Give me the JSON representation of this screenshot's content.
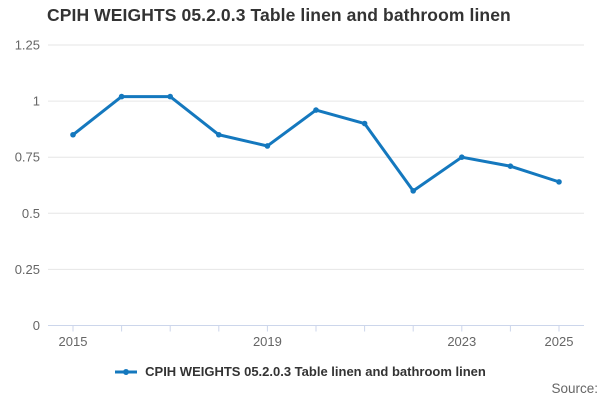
{
  "title": "CPIH WEIGHTS 05.2.0.3 Table linen and bathroom linen",
  "legend": {
    "label": "CPIH WEIGHTS 05.2.0.3 Table linen and bathroom linen"
  },
  "source_label": "Source:",
  "colors": {
    "line": "#1478be",
    "grid": "#e6e6e6",
    "axis": "#ccd6eb",
    "tick": "#ccd6eb",
    "axis_text": "#666666",
    "title_text": "#333333"
  },
  "chart_data": {
    "type": "line",
    "title": "CPIH WEIGHTS 05.2.0.3 Table linen and bathroom linen",
    "x": [
      2015,
      2016,
      2017,
      2018,
      2019,
      2020,
      2021,
      2022,
      2023,
      2024,
      2025
    ],
    "series": [
      {
        "name": "CPIH WEIGHTS 05.2.0.3 Table linen and bathroom linen",
        "values": [
          0.85,
          1.02,
          1.02,
          0.85,
          0.8,
          0.96,
          0.9,
          0.6,
          0.75,
          0.71,
          0.64
        ]
      }
    ],
    "xlabel": "",
    "ylabel": "",
    "ylim": [
      0,
      1.25
    ],
    "y_ticks": [
      0,
      0.25,
      0.5,
      0.75,
      1,
      1.25
    ],
    "y_tick_labels": [
      "0",
      "0.25",
      "0.5",
      "0.75",
      "1",
      "1.25"
    ],
    "x_axis_labels": [
      "2015",
      "2019",
      "2023",
      "2025"
    ],
    "grid": true,
    "legend_position": "bottom"
  }
}
